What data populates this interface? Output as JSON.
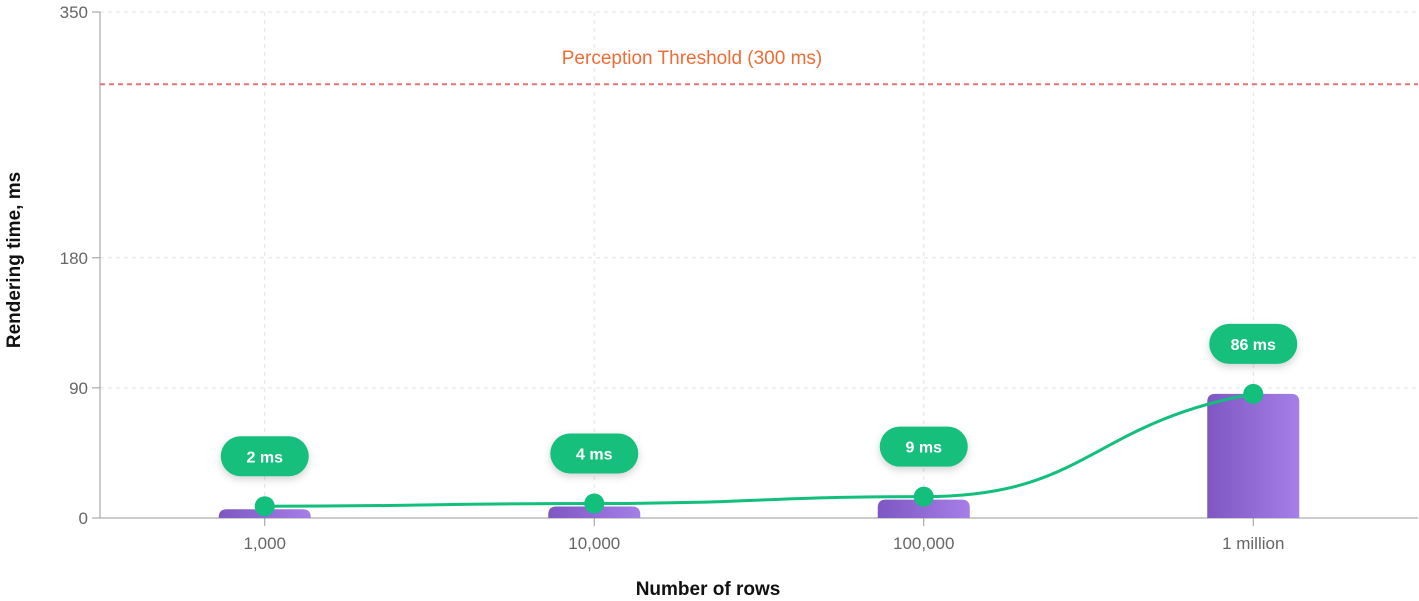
{
  "chart_data": {
    "type": "bar",
    "categories": [
      "1,000",
      "10,000",
      "100,000",
      "1 million"
    ],
    "values": [
      2,
      4,
      9,
      86
    ],
    "data_labels": [
      "2 ms",
      "4 ms",
      "9 ms",
      "86 ms"
    ],
    "xlabel": "Number of rows",
    "ylabel": "Rendering time, ms",
    "yticks": [
      0,
      90,
      180,
      350
    ],
    "ylim": [
      0,
      350
    ],
    "grid": true,
    "threshold": {
      "value": 300,
      "label": "Perception Threshold (300 ms)",
      "color": "#e57373"
    },
    "overlay_line": {
      "type": "smooth line",
      "values": [
        2,
        4,
        9,
        86
      ],
      "color": "#12bf7c"
    },
    "colors": {
      "bar_start": "#7e57c2",
      "bar_end": "#a57ee8",
      "label_bg": "#12bf7c",
      "threshold_text": "#ef6c35"
    }
  }
}
